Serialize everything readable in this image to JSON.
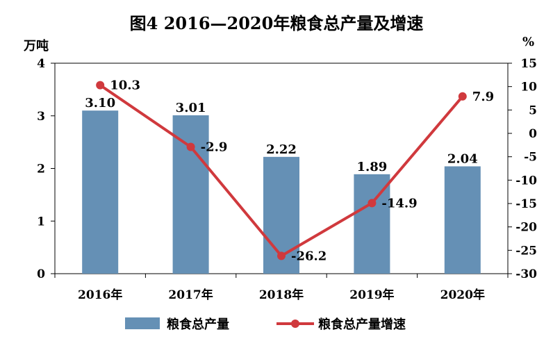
{
  "chart_data": {
    "type": "bar+line",
    "title": "图4  2016—2020年粮食总产量及增速",
    "categories": [
      "2016年",
      "2017年",
      "2018年",
      "2019年",
      "2020年"
    ],
    "left_axis": {
      "unit": "万吨",
      "ylim": [
        0,
        4
      ],
      "ticks": [
        "0",
        "1",
        "2",
        "3",
        "4"
      ]
    },
    "right_axis": {
      "unit": "%",
      "ylim": [
        -30,
        15
      ],
      "ticks": [
        "15",
        "10",
        "5",
        "0",
        "-5",
        "-10",
        "-15",
        "-20",
        "-25",
        "-30"
      ]
    },
    "series": [
      {
        "name": "粮食总产量",
        "type": "bar",
        "axis": "left",
        "values": [
          3.1,
          3.01,
          2.22,
          1.89,
          2.04
        ],
        "labels": [
          "3.10",
          "3.01",
          "2.22",
          "1.89",
          "2.04"
        ]
      },
      {
        "name": "粮食总产量增速",
        "type": "line",
        "axis": "right",
        "values": [
          10.3,
          -2.9,
          -26.2,
          -14.9,
          7.9
        ],
        "labels": [
          "10.3",
          "-2.9",
          "-26.2",
          "-14.9",
          "7.9"
        ]
      }
    ],
    "grid": false,
    "legend_position": "bottom"
  },
  "colors": {
    "bar": "#6590b5",
    "line": "#d0393d",
    "axis": "#000000"
  }
}
